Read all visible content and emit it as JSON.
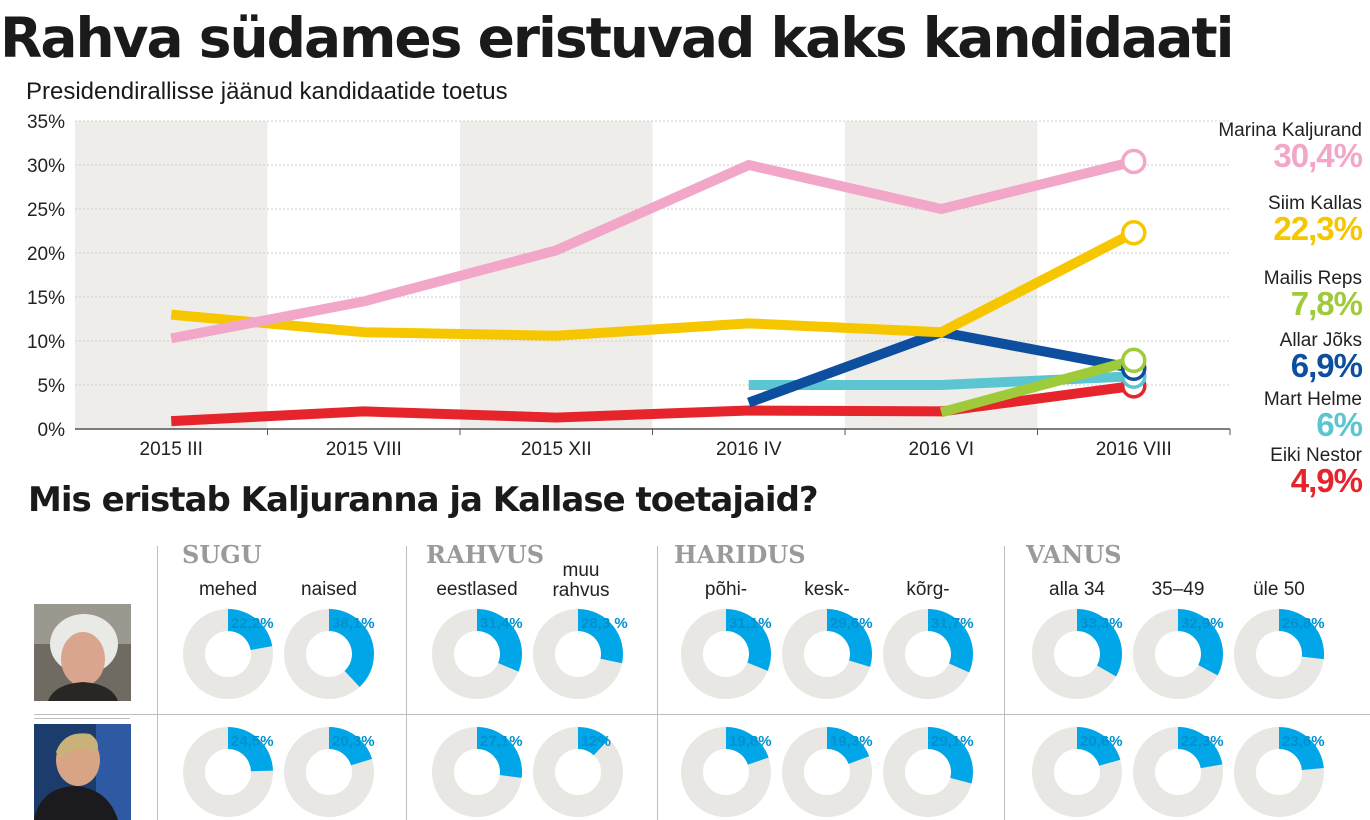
{
  "title": "Rahva südames eristuvad kaks kandidaati",
  "chart_data": [
    {
      "type": "line",
      "title": "Presidendirallisse jäänud kandidaatide toetus",
      "categories": [
        "2015 III",
        "2015 VIII",
        "2015 XII",
        "2016 IV",
        "2016 VI",
        "2016 VIII"
      ],
      "yticks": [
        "0%",
        "5%",
        "10%",
        "15%",
        "20%",
        "25%",
        "30%",
        "35%"
      ],
      "ylim": [
        0,
        35
      ],
      "series": [
        {
          "name": "Marina Kaljurand",
          "label": "30,4%",
          "color": "#f2a7c8",
          "points": [
            [
              0,
              10.3
            ],
            [
              1,
              14.5
            ],
            [
              2,
              20.3
            ],
            [
              3,
              30.0
            ],
            [
              4,
              25.0
            ],
            [
              5,
              30.4
            ]
          ]
        },
        {
          "name": "Siim Kallas",
          "label": "22,3%",
          "color": "#f6c700",
          "points": [
            [
              0,
              13.0
            ],
            [
              1,
              11.0
            ],
            [
              2,
              10.6
            ],
            [
              3,
              12.0
            ],
            [
              4,
              11.0
            ],
            [
              5,
              22.3
            ]
          ]
        },
        {
          "name": "Mailis Reps",
          "label": "7,8%",
          "color": "#9fcb3b",
          "points": [
            [
              4,
              1.9
            ],
            [
              5,
              7.8
            ]
          ]
        },
        {
          "name": "Allar Jõks",
          "label": "6,9%",
          "color": "#0d4f9e",
          "points": [
            [
              3,
              3.0
            ],
            [
              4,
              11.0
            ],
            [
              5,
              6.9
            ]
          ]
        },
        {
          "name": "Mart Helme",
          "label": "6%",
          "color": "#5bc6d2",
          "points": [
            [
              3,
              5.0
            ],
            [
              4,
              5.0
            ],
            [
              5,
              6.0
            ]
          ]
        },
        {
          "name": "Eiki Nestor",
          "label": "4,9%",
          "color": "#e5242b",
          "points": [
            [
              0,
              0.9
            ],
            [
              1,
              2.0
            ],
            [
              2,
              1.3
            ],
            [
              3,
              2.1
            ],
            [
              4,
              2.0
            ],
            [
              5,
              4.9
            ]
          ]
        }
      ]
    },
    {
      "type": "donut",
      "title": "Mis eristab Kaljuranna ja Kallase toetajaid?",
      "rows": [
        "Marina Kaljurand",
        "Siim Kallas"
      ],
      "groups": [
        {
          "name": "SUGU",
          "items": [
            {
              "label": "mehed",
              "values": [
                22.2,
                24.5
              ],
              "labels": [
                "22,2%",
                "24,5%"
              ]
            },
            {
              "label": "naised",
              "values": [
                38.1,
                20.3
              ],
              "labels": [
                "38,1%",
                "20,3%"
              ]
            }
          ]
        },
        {
          "name": "RAHVUS",
          "items": [
            {
              "label": "eestlased",
              "values": [
                31.4,
                27.1
              ],
              "labels": [
                "31,4%",
                "27,1%"
              ]
            },
            {
              "label": "muu rahvus",
              "values": [
                28.3,
                12
              ],
              "labels": [
                "28,3 %",
                "12%"
              ]
            }
          ]
        },
        {
          "name": "HARIDUS",
          "items": [
            {
              "label": "põhi-",
              "values": [
                31.1,
                19.8
              ],
              "labels": [
                "31,1%",
                "19,8%"
              ]
            },
            {
              "label": "kesk-",
              "values": [
                29.6,
                19.3
              ],
              "labels": [
                "29,6%",
                "19,3%"
              ]
            },
            {
              "label": "kõrg-",
              "values": [
                31.7,
                29.1
              ],
              "labels": [
                "31,7%",
                "29,1%"
              ]
            }
          ]
        },
        {
          "name": "VANUS",
          "items": [
            {
              "label": "alla 34",
              "values": [
                33.3,
                20.6
              ],
              "labels": [
                "33,3%",
                "20,6%"
              ]
            },
            {
              "label": "35–49",
              "values": [
                32.9,
                22.3
              ],
              "labels": [
                "32,9%",
                "22,3%"
              ]
            },
            {
              "label": "üle 50",
              "values": [
                26.8,
                23.6
              ],
              "labels": [
                "26,8%",
                "23,6%"
              ]
            }
          ]
        }
      ]
    }
  ],
  "colors": {
    "donut_fill": "#00a6e8",
    "donut_track": "#e8e7e3"
  }
}
